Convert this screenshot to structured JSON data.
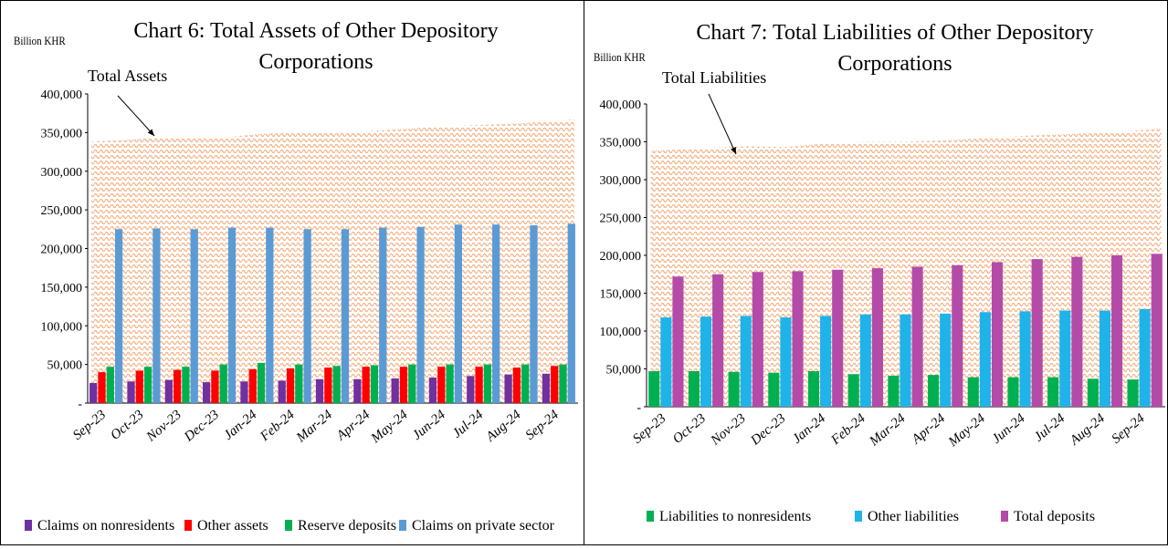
{
  "chart_data": [
    {
      "type": "bar",
      "title": "Chart 6: Total Assets of Other Depository Corporations",
      "y_axis_label": "Billion KHR",
      "categories": [
        "Sep-23",
        "Oct-23",
        "Nov-23",
        "Dec-23",
        "Jan-24",
        "Feb-24",
        "Mar-24",
        "Apr-24",
        "May-24",
        "Jun-24",
        "Jul-24",
        "Aug-24",
        "Sep-24"
      ],
      "area": {
        "name": "Total Assets",
        "color": "#f4b183",
        "values": [
          338000,
          342000,
          344000,
          343000,
          348000,
          350000,
          350000,
          352000,
          355000,
          358000,
          360000,
          362000,
          367000
        ]
      },
      "series": [
        {
          "name": "Claims on nonresidents",
          "color": "#7030a0",
          "values": [
            26000,
            28000,
            30000,
            27000,
            28000,
            29000,
            31000,
            31000,
            32000,
            33000,
            35000,
            37000,
            38000
          ]
        },
        {
          "name": "Other assets",
          "color": "#ff0000",
          "values": [
            40000,
            42000,
            43000,
            42000,
            44000,
            45000,
            46000,
            47000,
            47000,
            47000,
            47000,
            46000,
            48000
          ]
        },
        {
          "name": "Reserve deposits",
          "color": "#00b050",
          "values": [
            47000,
            47000,
            47000,
            50000,
            52000,
            50000,
            48000,
            49000,
            50000,
            50000,
            50000,
            50000,
            50000
          ]
        },
        {
          "name": "Claims on private sector",
          "color": "#5b9bd5",
          "values": [
            225000,
            226000,
            225000,
            227000,
            227000,
            225000,
            225000,
            227000,
            228000,
            231000,
            231000,
            230000,
            232000
          ]
        }
      ],
      "ylim": [
        0,
        400000
      ],
      "yticks": [
        {
          "value": 0,
          "label": "-"
        },
        {
          "value": 50000,
          "label": "50,000"
        },
        {
          "value": 100000,
          "label": "100,000"
        },
        {
          "value": 150000,
          "label": "150,000"
        },
        {
          "value": 200000,
          "label": "200,000"
        },
        {
          "value": 250000,
          "label": "250,000"
        },
        {
          "value": 300000,
          "label": "300,000"
        },
        {
          "value": 350000,
          "label": "350,000"
        },
        {
          "value": 400000,
          "label": "400,000"
        }
      ],
      "grid": false,
      "legend": "bottom"
    },
    {
      "type": "bar",
      "title": "Chart 7: Total Liabilities of Other Depository Corporations",
      "y_axis_label": "Billion KHR",
      "categories": [
        "Sep-23",
        "Oct-23",
        "Nov-23",
        "Dec-23",
        "Jan-24",
        "Feb-24",
        "Mar-24",
        "Apr-24",
        "May-24",
        "Jun-24",
        "Jul-24",
        "Aug-24",
        "Sep-24"
      ],
      "area": {
        "name": "Total Liabilities",
        "color": "#f4b183",
        "values": [
          338000,
          342000,
          344000,
          343000,
          348000,
          350000,
          350000,
          352000,
          355000,
          358000,
          360000,
          362000,
          367000
        ]
      },
      "series": [
        {
          "name": "Liabilities to nonresidents",
          "color": "#00b050",
          "values": [
            47000,
            47000,
            46000,
            45000,
            47000,
            43000,
            41000,
            42000,
            39000,
            39000,
            39000,
            37000,
            36000
          ]
        },
        {
          "name": "Other liabilities",
          "color": "#1fb3ea",
          "values": [
            118000,
            119000,
            120000,
            118000,
            120000,
            122000,
            122000,
            123000,
            125000,
            126000,
            127000,
            127000,
            129000
          ]
        },
        {
          "name": "Total deposits",
          "color": "#b44ba8",
          "values": [
            172000,
            175000,
            178000,
            179000,
            181000,
            183000,
            185000,
            187000,
            191000,
            195000,
            198000,
            200000,
            202000
          ]
        }
      ],
      "ylim": [
        0,
        400000
      ],
      "yticks": [
        {
          "value": 0,
          "label": "-"
        },
        {
          "value": 50000,
          "label": "50,000"
        },
        {
          "value": 100000,
          "label": "100,000"
        },
        {
          "value": 150000,
          "label": "150,000"
        },
        {
          "value": 200000,
          "label": "200,000"
        },
        {
          "value": 250000,
          "label": "250,000"
        },
        {
          "value": 300000,
          "label": "300,000"
        },
        {
          "value": 350000,
          "label": "350,000"
        },
        {
          "value": 400000,
          "label": "400,000"
        }
      ],
      "grid": false,
      "legend": "bottom"
    }
  ]
}
